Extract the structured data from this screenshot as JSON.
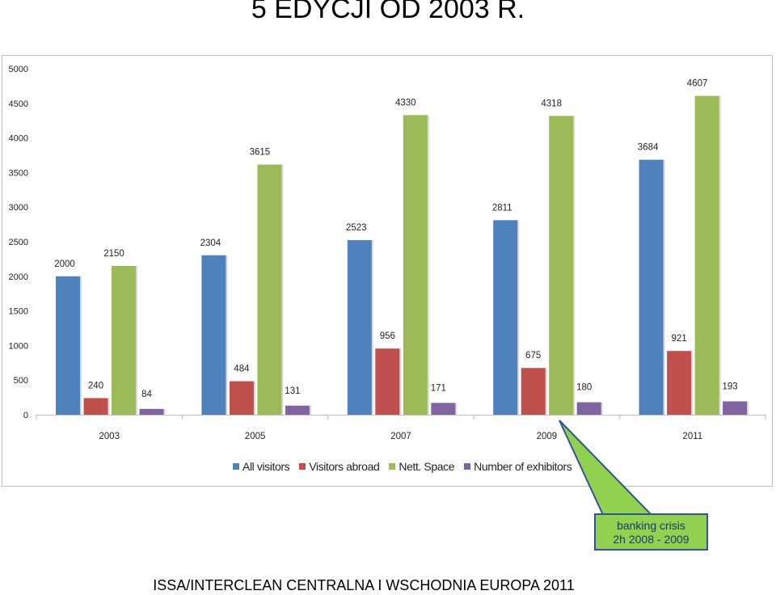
{
  "page": {
    "title": "5 EDYCJI OD 2003 R.",
    "footer": "ISSA/INTERCLEAN CENTRALNA I WSCHODNIA EUROPA 2011",
    "callout": {
      "line1": "banking crisis",
      "line2": "2h 2008 - 2009"
    }
  },
  "colors": {
    "all_visitors": "#4f81bd",
    "visitors_abroad": "#c0504d",
    "nett_space": "#9bbb59",
    "exhibitors": "#8064a2",
    "callout_fill": "#92d050",
    "callout_border": "#2f5597"
  },
  "chart_data": {
    "type": "bar",
    "title": "",
    "xlabel": "",
    "ylabel": "",
    "categories": [
      "2003",
      "2005",
      "2007",
      "2009",
      "2011"
    ],
    "series": [
      {
        "name": "All visitors",
        "values": [
          2000,
          2304,
          2523,
          2811,
          3684
        ]
      },
      {
        "name": "Visitors abroad",
        "values": [
          240,
          484,
          956,
          675,
          921
        ]
      },
      {
        "name": "Nett. Space",
        "values": [
          2150,
          3615,
          4330,
          4318,
          4607
        ]
      },
      {
        "name": "Number of exhibitors",
        "values": [
          84,
          131,
          171,
          180,
          193
        ]
      }
    ],
    "ylim": [
      0,
      5000
    ],
    "yticks": [
      "0",
      "500",
      "1000",
      "1500",
      "2000",
      "2500",
      "3000",
      "3500",
      "4000",
      "4500",
      "5000"
    ],
    "grid": false,
    "legend": "bottom"
  }
}
